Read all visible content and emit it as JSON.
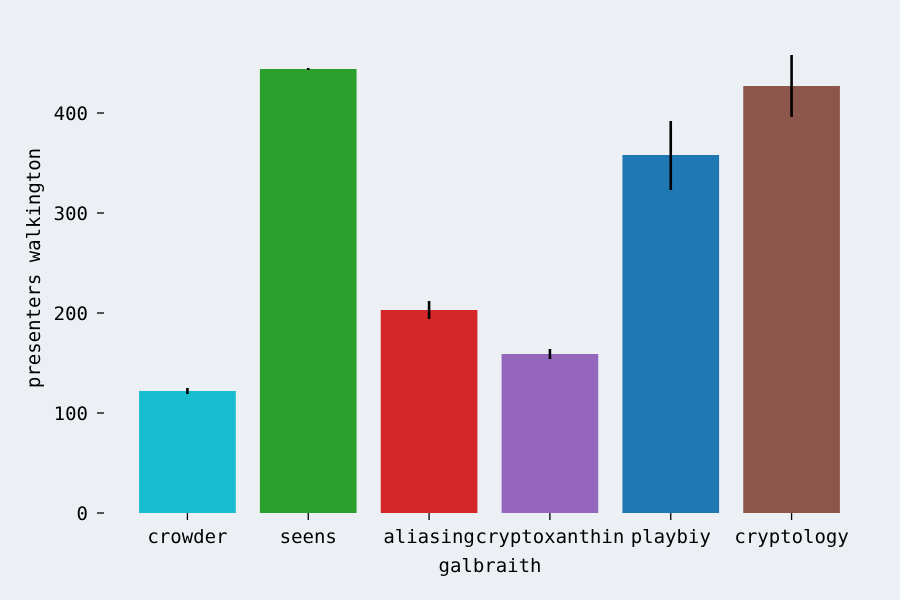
{
  "chart_data": {
    "type": "bar",
    "xlabel": "galbraith",
    "ylabel": "presenters walkington",
    "categories": [
      "crowder",
      "seens",
      "aliasing",
      "cryptoxanthin",
      "playbiy",
      "cryptology"
    ],
    "values": [
      122,
      444,
      203,
      159,
      358,
      427
    ],
    "errors": [
      [
        119,
        125
      ],
      [
        443,
        445
      ],
      [
        194,
        212
      ],
      [
        154,
        164
      ],
      [
        323,
        392
      ],
      [
        396,
        458
      ]
    ],
    "colors": [
      "#17becf",
      "#2ca02c",
      "#d62728",
      "#9467bd",
      "#1f77b4",
      "#8c564b"
    ],
    "ylim": [
      0,
      460
    ],
    "yticks": [
      0,
      100,
      200,
      300,
      400
    ],
    "grid": false,
    "background": "#eceff4"
  }
}
